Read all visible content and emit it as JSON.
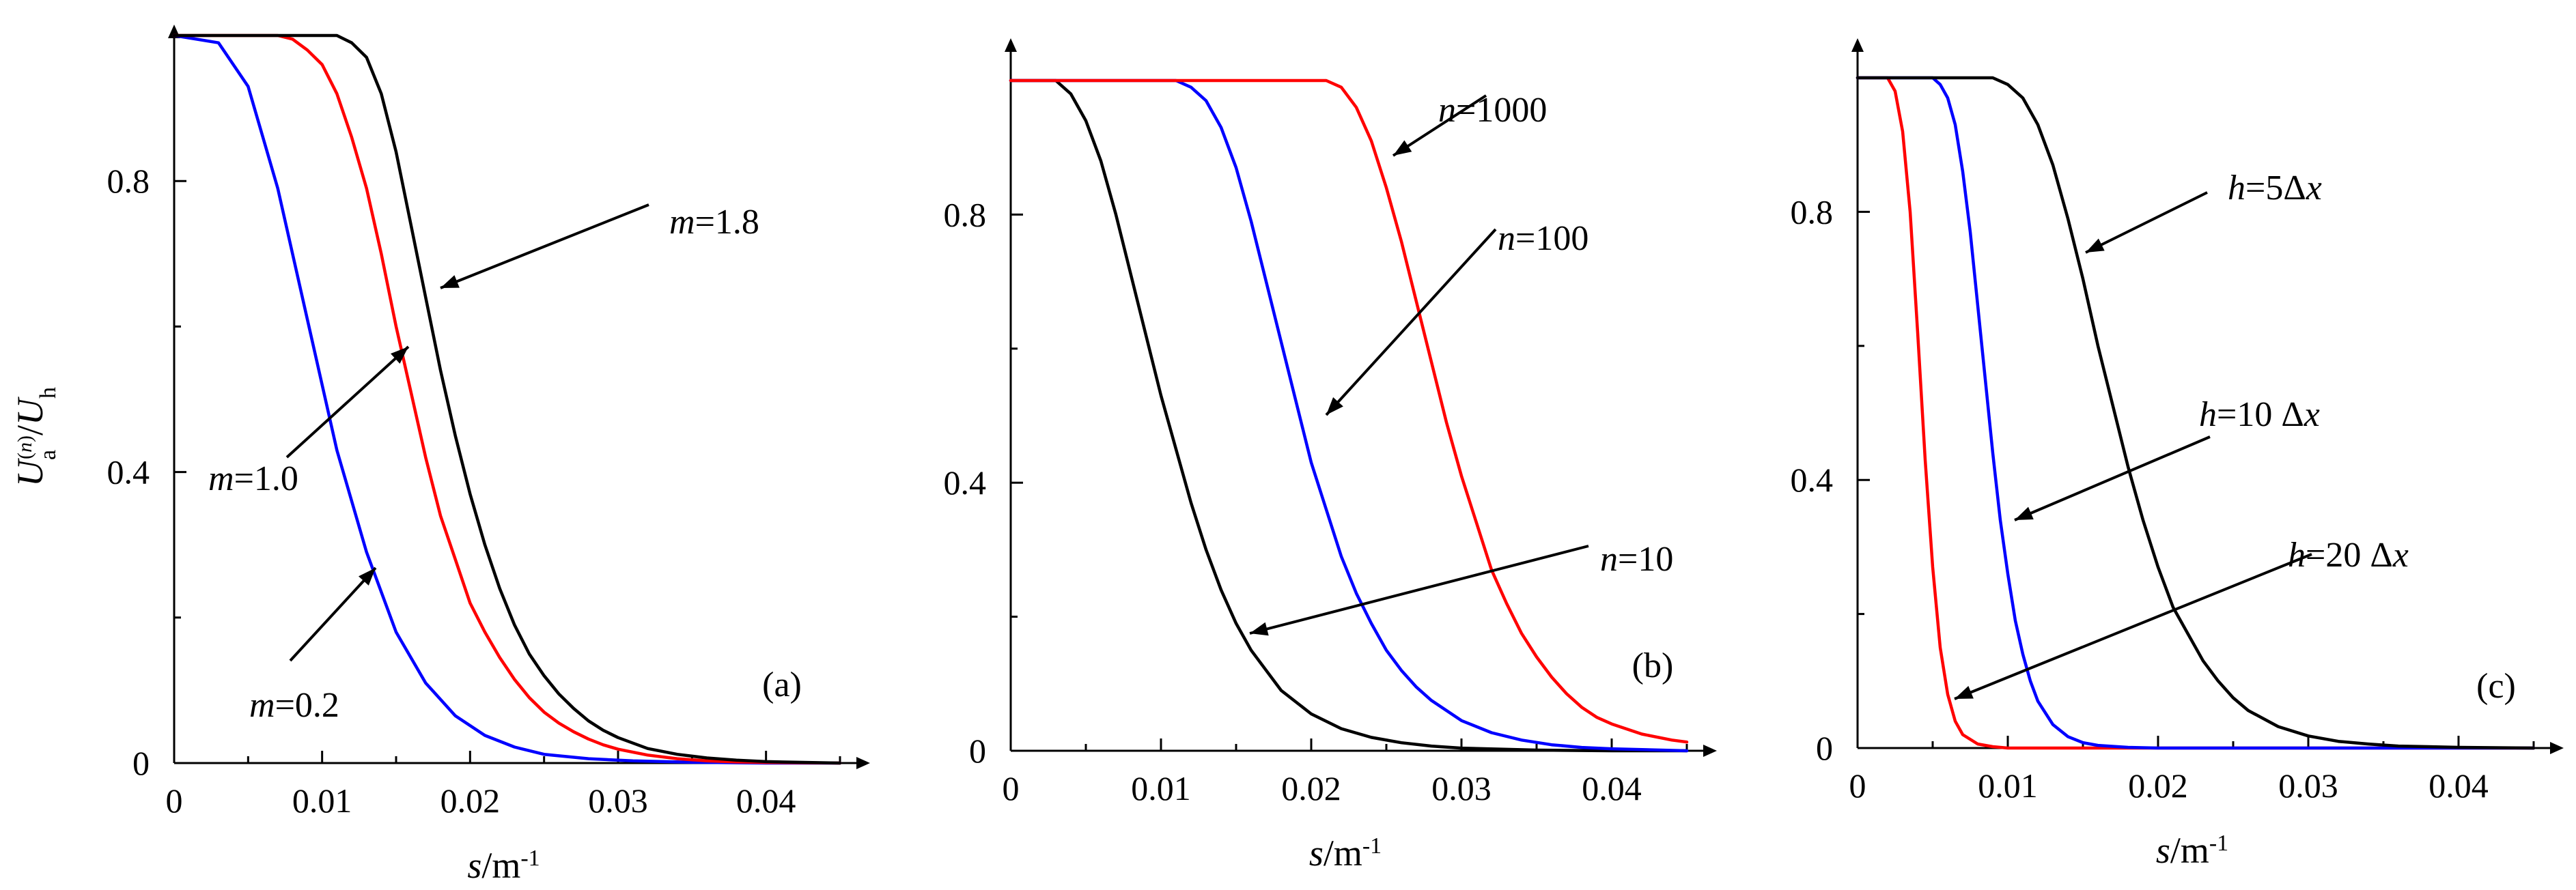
{
  "chart_data": [
    {
      "type": "line",
      "panel_label": "(a)",
      "xlabel": "s/m-1",
      "ylabel": "Ua(n)/Uh",
      "xlim": [
        0,
        0.045
      ],
      "ylim": [
        0,
        1.0
      ],
      "x_ticks": [
        "0",
        "0.01",
        "0.02",
        "0.03",
        "0.04"
      ],
      "y_ticks": [
        "0",
        "0.4",
        "0.8"
      ],
      "grid": false,
      "series": [
        {
          "name": "m=0.2",
          "color": "#0000ff",
          "x": [
            0,
            0.003,
            0.005,
            0.007,
            0.009,
            0.011,
            0.013,
            0.015,
            0.017,
            0.019,
            0.021,
            0.023,
            0.025,
            0.028,
            0.031,
            0.035,
            0.04,
            0.045
          ],
          "y": [
            1.0,
            0.99,
            0.93,
            0.79,
            0.61,
            0.43,
            0.29,
            0.18,
            0.11,
            0.065,
            0.038,
            0.022,
            0.012,
            0.006,
            0.003,
            0.001,
            0.0,
            0.0
          ]
        },
        {
          "name": "m=1.0",
          "color": "#ff0000",
          "x": [
            0,
            0.007,
            0.008,
            0.009,
            0.01,
            0.011,
            0.012,
            0.013,
            0.014,
            0.015,
            0.016,
            0.017,
            0.018,
            0.019,
            0.02,
            0.021,
            0.022,
            0.023,
            0.024,
            0.025,
            0.026,
            0.027,
            0.028,
            0.029,
            0.03,
            0.032,
            0.034,
            0.036,
            0.038,
            0.04,
            0.045
          ],
          "y": [
            1.0,
            1.0,
            0.995,
            0.98,
            0.96,
            0.92,
            0.86,
            0.79,
            0.7,
            0.6,
            0.51,
            0.42,
            0.34,
            0.28,
            0.22,
            0.18,
            0.145,
            0.115,
            0.09,
            0.07,
            0.055,
            0.043,
            0.033,
            0.025,
            0.019,
            0.011,
            0.006,
            0.003,
            0.0015,
            0.0008,
            0.0
          ]
        },
        {
          "name": "m=1.8",
          "color": "#000000",
          "x": [
            0,
            0.011,
            0.012,
            0.013,
            0.014,
            0.015,
            0.016,
            0.017,
            0.018,
            0.019,
            0.02,
            0.021,
            0.022,
            0.023,
            0.024,
            0.025,
            0.026,
            0.027,
            0.028,
            0.029,
            0.03,
            0.032,
            0.034,
            0.036,
            0.038,
            0.04,
            0.045
          ],
          "y": [
            1.0,
            1.0,
            0.99,
            0.97,
            0.92,
            0.84,
            0.74,
            0.64,
            0.54,
            0.45,
            0.37,
            0.3,
            0.24,
            0.19,
            0.15,
            0.12,
            0.095,
            0.075,
            0.058,
            0.045,
            0.035,
            0.02,
            0.012,
            0.007,
            0.004,
            0.002,
            0.0
          ]
        }
      ],
      "annotations": [
        {
          "text": "m=1.8"
        },
        {
          "text": "m=1.0"
        },
        {
          "text": "m=0.2"
        }
      ]
    },
    {
      "type": "line",
      "panel_label": "(b)",
      "xlabel": "s/m-1",
      "ylabel": "",
      "xlim": [
        0,
        0.045
      ],
      "ylim": [
        0,
        1.0
      ],
      "x_ticks": [
        "0",
        "0.01",
        "0.02",
        "0.03",
        "0.04"
      ],
      "y_ticks": [
        "0",
        "0.4",
        "0.8"
      ],
      "grid": false,
      "series": [
        {
          "name": "n=10",
          "color": "#000000",
          "x": [
            0,
            0.003,
            0.004,
            0.005,
            0.006,
            0.007,
            0.008,
            0.009,
            0.01,
            0.011,
            0.012,
            0.013,
            0.014,
            0.015,
            0.016,
            0.017,
            0.018,
            0.02,
            0.022,
            0.024,
            0.026,
            0.028,
            0.03,
            0.035,
            0.04,
            0.045
          ],
          "y": [
            1.0,
            1.0,
            0.98,
            0.94,
            0.88,
            0.8,
            0.71,
            0.62,
            0.53,
            0.45,
            0.37,
            0.3,
            0.24,
            0.19,
            0.15,
            0.12,
            0.09,
            0.055,
            0.033,
            0.02,
            0.012,
            0.007,
            0.004,
            0.001,
            0.0,
            0.0
          ]
        },
        {
          "name": "n=100",
          "color": "#0000ff",
          "x": [
            0,
            0.011,
            0.012,
            0.013,
            0.014,
            0.015,
            0.016,
            0.017,
            0.018,
            0.019,
            0.02,
            0.021,
            0.022,
            0.023,
            0.024,
            0.025,
            0.026,
            0.027,
            0.028,
            0.03,
            0.032,
            0.034,
            0.036,
            0.038,
            0.04,
            0.045
          ],
          "y": [
            1.0,
            1.0,
            0.99,
            0.97,
            0.93,
            0.87,
            0.79,
            0.7,
            0.61,
            0.52,
            0.43,
            0.36,
            0.29,
            0.235,
            0.19,
            0.15,
            0.12,
            0.095,
            0.075,
            0.045,
            0.027,
            0.016,
            0.009,
            0.005,
            0.003,
            0.0
          ]
        },
        {
          "name": "n=1000",
          "color": "#ff0000",
          "x": [
            0,
            0.021,
            0.022,
            0.023,
            0.024,
            0.025,
            0.026,
            0.027,
            0.028,
            0.029,
            0.03,
            0.031,
            0.032,
            0.033,
            0.034,
            0.035,
            0.036,
            0.037,
            0.038,
            0.039,
            0.04,
            0.042,
            0.044,
            0.045
          ],
          "y": [
            1.0,
            1.0,
            0.99,
            0.96,
            0.91,
            0.84,
            0.76,
            0.67,
            0.58,
            0.49,
            0.41,
            0.34,
            0.27,
            0.22,
            0.175,
            0.14,
            0.11,
            0.085,
            0.065,
            0.05,
            0.04,
            0.025,
            0.016,
            0.013
          ]
        }
      ],
      "annotations": [
        {
          "text": "n=1000"
        },
        {
          "text": "n=100"
        },
        {
          "text": "n=10"
        }
      ]
    },
    {
      "type": "line",
      "panel_label": "(c)",
      "xlabel": "s/m-1",
      "ylabel": "",
      "xlim": [
        0,
        0.045
      ],
      "ylim": [
        0,
        1.0
      ],
      "x_ticks": [
        "0",
        "0.01",
        "0.02",
        "0.03",
        "0.04"
      ],
      "y_ticks": [
        "0",
        "0.4",
        "0.8"
      ],
      "grid": false,
      "series": [
        {
          "name": "h=20 Δx",
          "color": "#ff0000",
          "x": [
            0,
            0.002,
            0.0025,
            0.003,
            0.0035,
            0.004,
            0.0045,
            0.005,
            0.0055,
            0.006,
            0.0065,
            0.007,
            0.008,
            0.009,
            0.01,
            0.012,
            0.015,
            0.045
          ],
          "y": [
            1.0,
            1.0,
            0.98,
            0.92,
            0.8,
            0.62,
            0.43,
            0.27,
            0.15,
            0.08,
            0.04,
            0.02,
            0.006,
            0.002,
            0.0,
            0.0,
            0.0,
            0.0
          ]
        },
        {
          "name": "h=10 Δx",
          "color": "#0000ff",
          "x": [
            0,
            0.005,
            0.0055,
            0.006,
            0.0065,
            0.007,
            0.0075,
            0.008,
            0.0085,
            0.009,
            0.0095,
            0.01,
            0.0105,
            0.011,
            0.0115,
            0.012,
            0.013,
            0.014,
            0.015,
            0.016,
            0.018,
            0.02,
            0.045
          ],
          "y": [
            1.0,
            1.0,
            0.99,
            0.97,
            0.93,
            0.86,
            0.77,
            0.66,
            0.55,
            0.44,
            0.34,
            0.26,
            0.19,
            0.14,
            0.1,
            0.07,
            0.035,
            0.017,
            0.008,
            0.004,
            0.001,
            0.0,
            0.0
          ]
        },
        {
          "name": "h=5 Δx",
          "color": "#000000",
          "x": [
            0,
            0.009,
            0.01,
            0.011,
            0.012,
            0.013,
            0.014,
            0.015,
            0.016,
            0.017,
            0.018,
            0.019,
            0.02,
            0.021,
            0.022,
            0.023,
            0.024,
            0.025,
            0.026,
            0.028,
            0.03,
            0.032,
            0.034,
            0.036,
            0.038,
            0.04,
            0.045
          ],
          "y": [
            1.0,
            1.0,
            0.99,
            0.97,
            0.93,
            0.87,
            0.79,
            0.7,
            0.6,
            0.51,
            0.42,
            0.34,
            0.27,
            0.21,
            0.17,
            0.13,
            0.1,
            0.075,
            0.056,
            0.032,
            0.018,
            0.01,
            0.006,
            0.003,
            0.002,
            0.001,
            0.0
          ]
        }
      ],
      "annotations": [
        {
          "text": "h=5Δx"
        },
        {
          "text": "h=10 Δx"
        },
        {
          "text": "h=20 Δx"
        }
      ]
    }
  ]
}
